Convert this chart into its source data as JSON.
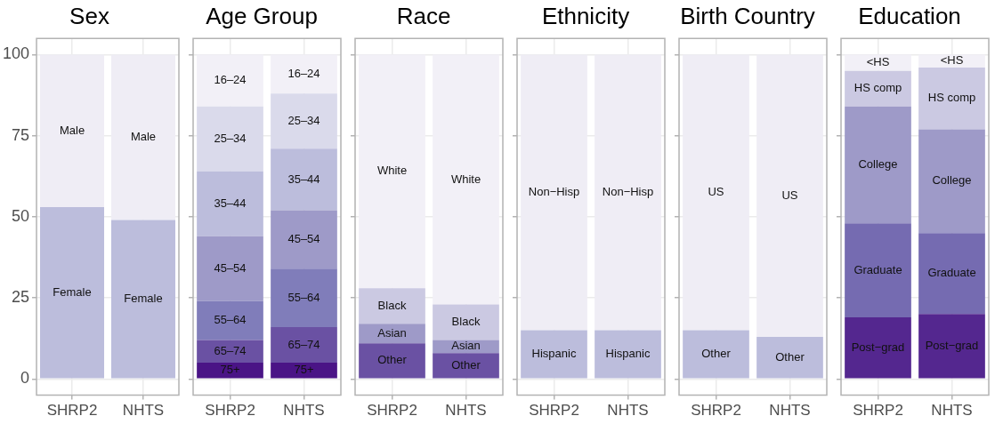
{
  "chart_data": [
    {
      "type": "bar",
      "title": "Sex",
      "stacked": true,
      "categories": [
        "SHRP2",
        "NHTS"
      ],
      "ylim": [
        -5,
        105
      ],
      "yticks": [
        0,
        25,
        50,
        75,
        100
      ],
      "grid": true,
      "legend": false,
      "series": [
        {
          "name": "Female",
          "color": "#bcbddc",
          "values": [
            53,
            49
          ]
        },
        {
          "name": "Male",
          "color": "#efedf5",
          "values": [
            47,
            51
          ]
        }
      ]
    },
    {
      "type": "bar",
      "title": "Age Group",
      "stacked": true,
      "categories": [
        "SHRP2",
        "NHTS"
      ],
      "ylim": [
        -5,
        105
      ],
      "yticks": [
        0,
        25,
        50,
        75,
        100
      ],
      "grid": true,
      "legend": false,
      "tick_labels": "x",
      "series": [
        {
          "name": "75+",
          "color": "#4a1486",
          "values": [
            5,
            5
          ]
        },
        {
          "name": "65–74",
          "color": "#6a51a3",
          "values": [
            7,
            11
          ]
        },
        {
          "name": "55–64",
          "color": "#807dba",
          "values": [
            12,
            18
          ]
        },
        {
          "name": "45–54",
          "color": "#9e9ac8",
          "values": [
            20,
            18
          ]
        },
        {
          "name": "35–44",
          "color": "#bcbddc",
          "values": [
            20,
            19
          ]
        },
        {
          "name": "25–34",
          "color": "#dadaeb",
          "values": [
            20,
            17
          ]
        },
        {
          "name": "16–24",
          "color": "#f2f0f7",
          "values": [
            16,
            12
          ]
        }
      ]
    },
    {
      "type": "bar",
      "title": "Race",
      "stacked": true,
      "categories": [
        "SHRP2",
        "NHTS"
      ],
      "ylim": [
        -5,
        105
      ],
      "yticks": [
        0,
        25,
        50,
        75,
        100
      ],
      "grid": true,
      "legend": false,
      "tick_labels": "x",
      "series": [
        {
          "name": "Other",
          "color": "#6a51a3",
          "values": [
            11,
            8
          ]
        },
        {
          "name": "Asian",
          "color": "#9e9ac8",
          "values": [
            6,
            4
          ]
        },
        {
          "name": "Black",
          "color": "#cbc9e2",
          "values": [
            11,
            11
          ]
        },
        {
          "name": "White",
          "color": "#f2f0f7",
          "values": [
            72,
            77
          ]
        }
      ]
    },
    {
      "type": "bar",
      "title": "Ethnicity",
      "stacked": true,
      "categories": [
        "SHRP2",
        "NHTS"
      ],
      "ylim": [
        -5,
        105
      ],
      "yticks": [
        0,
        25,
        50,
        75,
        100
      ],
      "grid": true,
      "legend": false,
      "tick_labels": "x",
      "series": [
        {
          "name": "Hispanic",
          "color": "#bcbddc",
          "values": [
            15,
            15
          ]
        },
        {
          "name": "Non−Hisp",
          "color": "#efedf5",
          "values": [
            85,
            85
          ]
        }
      ]
    },
    {
      "type": "bar",
      "title": "Birth Country",
      "stacked": true,
      "categories": [
        "SHRP2",
        "NHTS"
      ],
      "ylim": [
        -5,
        105
      ],
      "yticks": [
        0,
        25,
        50,
        75,
        100
      ],
      "grid": true,
      "legend": false,
      "tick_labels": "x",
      "series": [
        {
          "name": "Other",
          "color": "#bcbddc",
          "values": [
            15,
            13
          ]
        },
        {
          "name": "US",
          "color": "#efedf5",
          "values": [
            85,
            87
          ]
        }
      ]
    },
    {
      "type": "bar",
      "title": "Education",
      "stacked": true,
      "categories": [
        "SHRP2",
        "NHTS"
      ],
      "ylim": [
        -5,
        105
      ],
      "yticks": [
        0,
        25,
        50,
        75,
        100
      ],
      "grid": true,
      "legend": false,
      "tick_labels": "x",
      "series": [
        {
          "name": "Post−grad",
          "color": "#54278f",
          "values": [
            19,
            20
          ]
        },
        {
          "name": "Graduate",
          "color": "#756bb1",
          "values": [
            29,
            25
          ]
        },
        {
          "name": "College",
          "color": "#9e9ac8",
          "values": [
            36,
            32
          ]
        },
        {
          "name": "HS comp",
          "color": "#cbc9e2",
          "values": [
            11,
            19
          ]
        },
        {
          "name": "<HS",
          "color": "#f2f0f7",
          "values": [
            5,
            4
          ]
        }
      ]
    }
  ]
}
